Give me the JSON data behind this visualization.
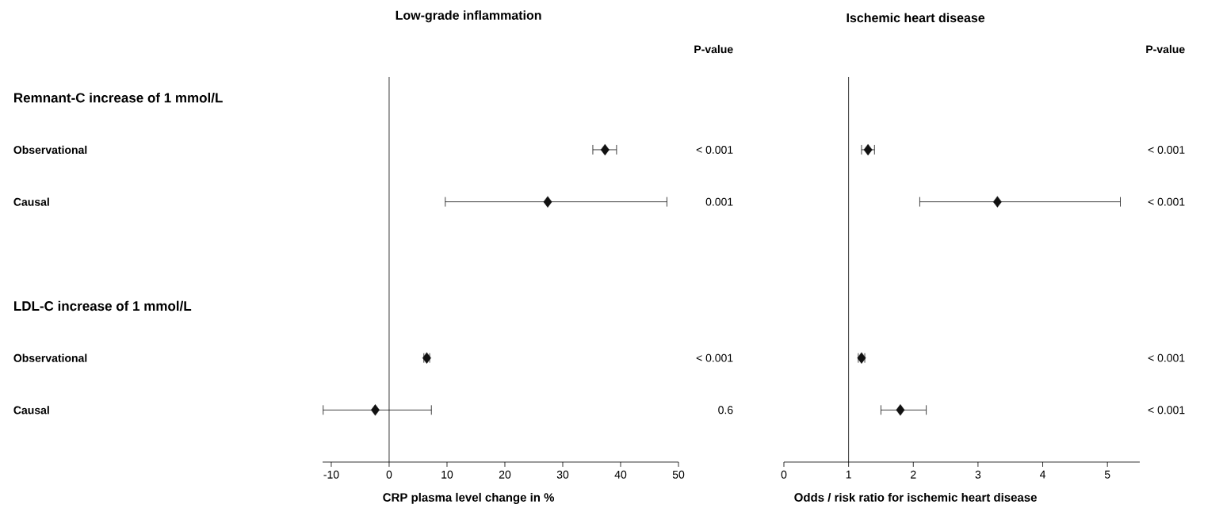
{
  "chart_data": [
    {
      "type": "scatter",
      "orientation": "horizontal",
      "title": "Low-grade inflammation",
      "xlabel": "CRP plasma level change in %",
      "categories": [
        "Remnant-C increase of 1 mmol/L",
        "Observational",
        "Causal",
        null,
        "LDL-C increase of 1 mmol/L",
        "Observational",
        "Causal"
      ],
      "values": [
        null,
        37.3,
        27.4,
        null,
        null,
        6.5,
        -2.4
      ],
      "errors": [
        null,
        [
          35.2,
          39.3
        ],
        [
          9.7,
          48.0
        ],
        null,
        null,
        [
          6.0,
          7.0
        ],
        [
          -11.4,
          7.3
        ]
      ],
      "color": "#111111",
      "marker": "diamond",
      "xlim": [
        -11.5,
        50
      ],
      "xticks": [
        -10,
        0,
        10,
        20,
        30,
        40,
        50
      ],
      "ref_lines": [
        {
          "axis": "x",
          "value": 0
        }
      ],
      "annotations": [
        "P-value",
        "< 0.001",
        "0.001",
        "< 0.001",
        "0.6"
      ]
    },
    {
      "type": "scatter",
      "orientation": "horizontal",
      "title": "Ischemic heart disease",
      "xlabel": "Odds / risk ratio for ischemic heart disease",
      "categories": [
        null,
        null,
        null,
        null,
        null,
        null,
        null
      ],
      "values": [
        null,
        1.3,
        3.3,
        null,
        null,
        1.2,
        1.8
      ],
      "errors": [
        null,
        [
          1.2,
          1.4
        ],
        [
          2.1,
          5.2
        ],
        null,
        null,
        [
          1.15,
          1.25
        ],
        [
          1.5,
          2.2
        ]
      ],
      "color": "#111111",
      "marker": "diamond",
      "xlim": [
        0,
        5.5
      ],
      "xticks": [
        0,
        1,
        2,
        3,
        4,
        5
      ],
      "tick_labels": "x",
      "ref_lines": [
        {
          "axis": "x",
          "value": 1
        }
      ],
      "annotations": [
        "P-value",
        "< 0.001",
        "< 0.001",
        "< 0.001",
        "< 0.001"
      ]
    }
  ]
}
